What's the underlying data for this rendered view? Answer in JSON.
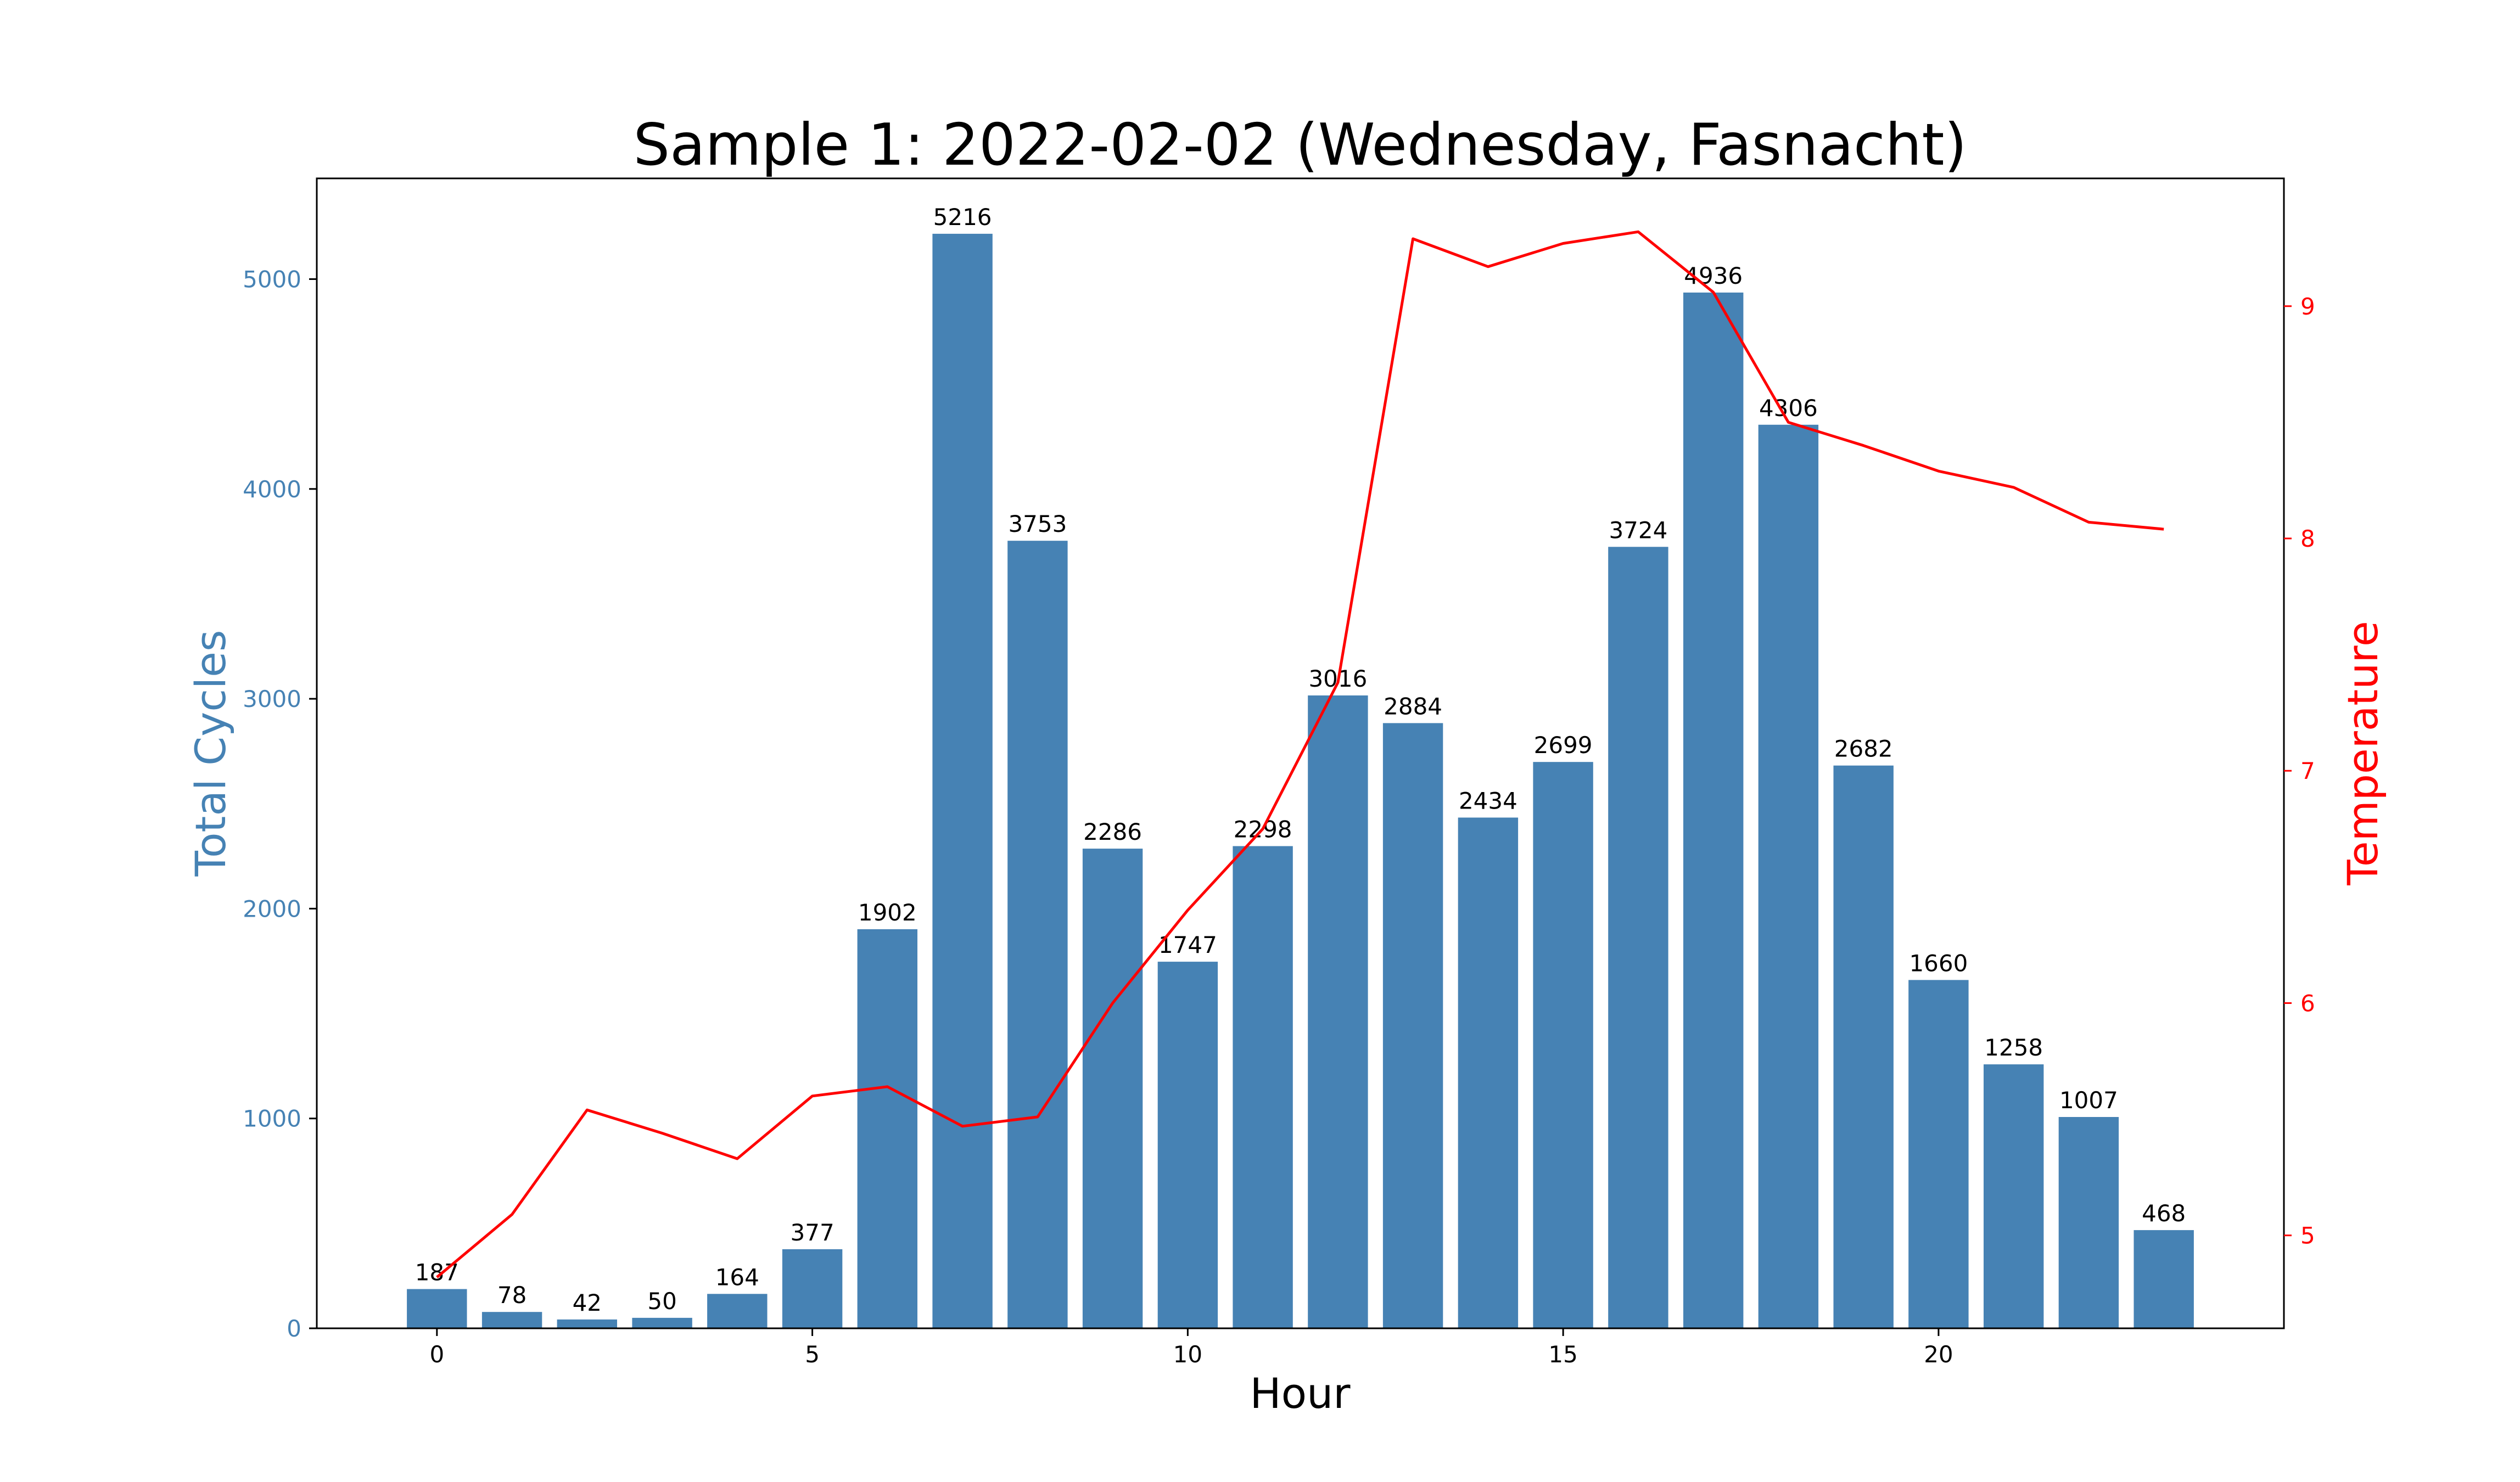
{
  "chart_data": {
    "type": "bar",
    "title": "Sample 1: 2022-02-02 (Wednesday, Fasnacht)",
    "xlabel": "Hour",
    "ylabel": "Total Cycles",
    "ylabel_right": "Temperature",
    "x": [
      0,
      1,
      2,
      3,
      4,
      5,
      6,
      7,
      8,
      9,
      10,
      11,
      12,
      13,
      14,
      15,
      16,
      17,
      18,
      19,
      20,
      21,
      22,
      23
    ],
    "x_ticks": [
      0,
      5,
      10,
      15,
      20
    ],
    "xlim": [
      -1.6,
      24.6
    ],
    "ylim": [
      0,
      5480
    ],
    "y_ticks": [
      0,
      1000,
      2000,
      3000,
      4000,
      5000
    ],
    "ylim_right": [
      4.6,
      9.55
    ],
    "y_ticks_right": [
      5,
      6,
      7,
      8,
      9
    ],
    "grid": false,
    "series": [
      {
        "name": "Total Cycles",
        "type": "bar",
        "color": "#4682b4",
        "values": [
          187,
          78,
          42,
          50,
          164,
          377,
          1902,
          5216,
          3753,
          2286,
          1747,
          2298,
          3016,
          2884,
          2434,
          2699,
          3724,
          4936,
          4306,
          2682,
          1660,
          1258,
          1007,
          468
        ]
      },
      {
        "name": "Temperature",
        "type": "line",
        "color": "#ff0000",
        "axis": "right",
        "values": [
          4.82,
          5.09,
          5.54,
          5.44,
          5.33,
          5.6,
          5.64,
          5.47,
          5.51,
          6.0,
          6.4,
          6.75,
          7.38,
          9.29,
          9.17,
          9.27,
          9.32,
          9.06,
          8.5,
          8.4,
          8.29,
          8.22,
          8.07,
          8.04
        ]
      }
    ]
  }
}
